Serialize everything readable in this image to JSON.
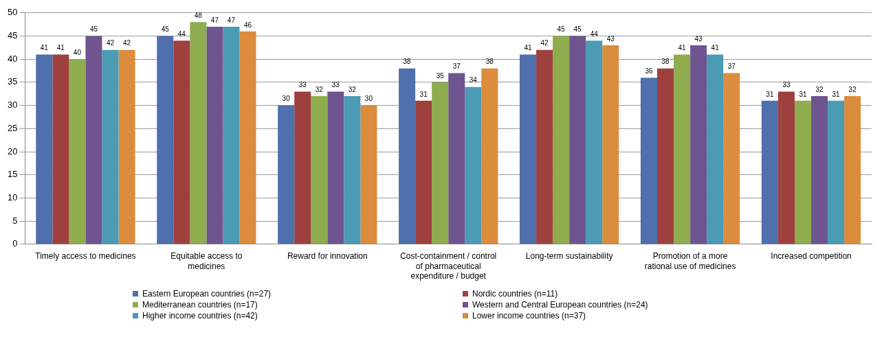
{
  "chart_data": {
    "type": "bar",
    "categories": [
      "Timely access to medicines",
      "Equitable access to medicines",
      "Reward for innovation",
      "Cost-containment / control of pharmaceutical expenditure / budget",
      "Long-term sustainability",
      "Promotion of a more rational use of medicines",
      "Increased competition"
    ],
    "series": [
      {
        "name": "Eastern European countries (n=27)",
        "color": "#4f6fad",
        "values": [
          41,
          45,
          30,
          38,
          41,
          36,
          31
        ]
      },
      {
        "name": "Nordic countries (n=11)",
        "color": "#9e413e",
        "values": [
          41,
          44,
          33,
          31,
          42,
          38,
          33
        ]
      },
      {
        "name": "Mediterranean countries (n=17)",
        "color": "#8fac4f",
        "values": [
          40,
          48,
          32,
          35,
          45,
          41,
          31
        ]
      },
      {
        "name": "Western and Central European countries (n=24)",
        "color": "#6e558f",
        "values": [
          45,
          47,
          33,
          37,
          45,
          43,
          32
        ]
      },
      {
        "name": "Higher income countries (n=42)",
        "color": "#4b9bb5",
        "values": [
          42,
          47,
          32,
          34,
          44,
          41,
          31
        ]
      },
      {
        "name": "Lower income countries (n=37)",
        "color": "#db8c3c",
        "values": [
          42,
          46,
          30,
          38,
          43,
          37,
          32
        ]
      }
    ],
    "ylim": [
      0,
      50
    ],
    "yticks": [
      0,
      5,
      10,
      15,
      20,
      25,
      30,
      35,
      40,
      45,
      50
    ],
    "grid": "y",
    "legend": "bottom",
    "data_labels": true
  }
}
